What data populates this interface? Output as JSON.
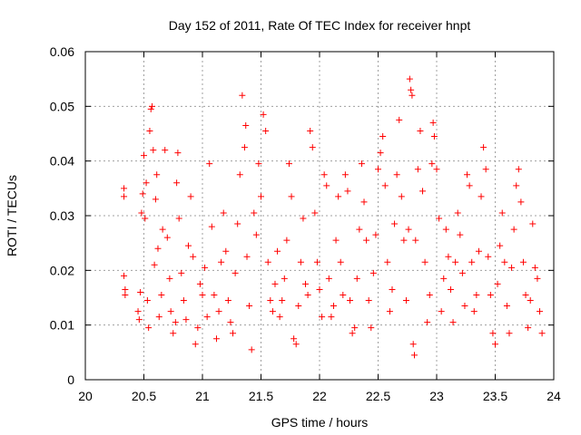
{
  "chart_data": {
    "type": "scatter",
    "title": "Day 152 of 2011, Rate Of TEC Index for receiver hnpt",
    "xlabel": "GPS time / hours",
    "ylabel": "ROTI / TECUs",
    "xlim": [
      20,
      24
    ],
    "ylim": [
      0,
      0.06
    ],
    "xticks": [
      "20",
      "20.5",
      "21",
      "21.5",
      "22",
      "22.5",
      "23",
      "23.5",
      "24"
    ],
    "yticks": [
      "0",
      "0.01",
      "0.02",
      "0.03",
      "0.04",
      "0.05",
      "0.06"
    ],
    "grid": true,
    "marker": "plus",
    "series": [
      {
        "color": "#ff0000",
        "points": [
          [
            20.33,
            0.035
          ],
          [
            20.33,
            0.0335
          ],
          [
            20.33,
            0.019
          ],
          [
            20.34,
            0.0165
          ],
          [
            20.34,
            0.0155
          ],
          [
            20.45,
            0.0125
          ],
          [
            20.46,
            0.011
          ],
          [
            20.47,
            0.016
          ],
          [
            20.48,
            0.0305
          ],
          [
            20.49,
            0.034
          ],
          [
            20.5,
            0.041
          ],
          [
            20.51,
            0.0295
          ],
          [
            20.52,
            0.036
          ],
          [
            20.53,
            0.0145
          ],
          [
            20.54,
            0.0095
          ],
          [
            20.55,
            0.0455
          ],
          [
            20.56,
            0.0495
          ],
          [
            20.57,
            0.05
          ],
          [
            20.58,
            0.042
          ],
          [
            20.59,
            0.021
          ],
          [
            20.6,
            0.033
          ],
          [
            20.61,
            0.0375
          ],
          [
            20.62,
            0.024
          ],
          [
            20.63,
            0.0115
          ],
          [
            20.65,
            0.0155
          ],
          [
            20.66,
            0.0275
          ],
          [
            20.68,
            0.042
          ],
          [
            20.7,
            0.026
          ],
          [
            20.72,
            0.0185
          ],
          [
            20.73,
            0.0125
          ],
          [
            20.75,
            0.0085
          ],
          [
            20.77,
            0.0105
          ],
          [
            20.78,
            0.036
          ],
          [
            20.79,
            0.0415
          ],
          [
            20.8,
            0.0295
          ],
          [
            20.82,
            0.0195
          ],
          [
            20.84,
            0.0145
          ],
          [
            20.86,
            0.011
          ],
          [
            20.88,
            0.0245
          ],
          [
            20.9,
            0.0335
          ],
          [
            20.92,
            0.0225
          ],
          [
            20.94,
            0.0065
          ],
          [
            20.96,
            0.0095
          ],
          [
            20.98,
            0.0175
          ],
          [
            21.0,
            0.0155
          ],
          [
            21.02,
            0.0205
          ],
          [
            21.04,
            0.0115
          ],
          [
            21.06,
            0.0395
          ],
          [
            21.08,
            0.028
          ],
          [
            21.1,
            0.0155
          ],
          [
            21.12,
            0.0075
          ],
          [
            21.14,
            0.0125
          ],
          [
            21.16,
            0.0215
          ],
          [
            21.18,
            0.0305
          ],
          [
            21.2,
            0.0235
          ],
          [
            21.22,
            0.0145
          ],
          [
            21.24,
            0.0105
          ],
          [
            21.26,
            0.0085
          ],
          [
            21.28,
            0.0195
          ],
          [
            21.3,
            0.0285
          ],
          [
            21.32,
            0.0375
          ],
          [
            21.34,
            0.052
          ],
          [
            21.36,
            0.0425
          ],
          [
            21.37,
            0.0465
          ],
          [
            21.38,
            0.0225
          ],
          [
            21.4,
            0.0135
          ],
          [
            21.42,
            0.0055
          ],
          [
            21.44,
            0.0305
          ],
          [
            21.46,
            0.0265
          ],
          [
            21.48,
            0.0395
          ],
          [
            21.5,
            0.0335
          ],
          [
            21.52,
            0.0485
          ],
          [
            21.54,
            0.0455
          ],
          [
            21.56,
            0.0215
          ],
          [
            21.58,
            0.0145
          ],
          [
            21.6,
            0.0125
          ],
          [
            21.62,
            0.0175
          ],
          [
            21.64,
            0.0235
          ],
          [
            21.66,
            0.0115
          ],
          [
            21.68,
            0.0145
          ],
          [
            21.7,
            0.0185
          ],
          [
            21.72,
            0.0255
          ],
          [
            21.74,
            0.0395
          ],
          [
            21.76,
            0.0335
          ],
          [
            21.78,
            0.0075
          ],
          [
            21.8,
            0.0065
          ],
          [
            21.82,
            0.0135
          ],
          [
            21.84,
            0.0215
          ],
          [
            21.86,
            0.0295
          ],
          [
            21.88,
            0.0175
          ],
          [
            21.9,
            0.0155
          ],
          [
            21.92,
            0.0455
          ],
          [
            21.94,
            0.0425
          ],
          [
            21.96,
            0.0305
          ],
          [
            21.98,
            0.0215
          ],
          [
            22.0,
            0.0165
          ],
          [
            22.02,
            0.0115
          ],
          [
            22.04,
            0.0375
          ],
          [
            22.06,
            0.0355
          ],
          [
            22.08,
            0.0185
          ],
          [
            22.1,
            0.0115
          ],
          [
            22.12,
            0.0135
          ],
          [
            22.14,
            0.0255
          ],
          [
            22.16,
            0.0335
          ],
          [
            22.18,
            0.0215
          ],
          [
            22.2,
            0.0155
          ],
          [
            22.22,
            0.0375
          ],
          [
            22.24,
            0.0345
          ],
          [
            22.26,
            0.0145
          ],
          [
            22.28,
            0.0085
          ],
          [
            22.3,
            0.0095
          ],
          [
            22.32,
            0.0185
          ],
          [
            22.34,
            0.0275
          ],
          [
            22.36,
            0.0395
          ],
          [
            22.38,
            0.0325
          ],
          [
            22.4,
            0.0255
          ],
          [
            22.42,
            0.0145
          ],
          [
            22.44,
            0.0095
          ],
          [
            22.46,
            0.0195
          ],
          [
            22.48,
            0.0265
          ],
          [
            22.5,
            0.0385
          ],
          [
            22.52,
            0.0415
          ],
          [
            22.54,
            0.0445
          ],
          [
            22.56,
            0.0355
          ],
          [
            22.58,
            0.0215
          ],
          [
            22.6,
            0.0125
          ],
          [
            22.62,
            0.0165
          ],
          [
            22.64,
            0.0285
          ],
          [
            22.66,
            0.0375
          ],
          [
            22.68,
            0.0475
          ],
          [
            22.7,
            0.0335
          ],
          [
            22.72,
            0.0255
          ],
          [
            22.74,
            0.0145
          ],
          [
            22.76,
            0.0275
          ],
          [
            22.77,
            0.055
          ],
          [
            22.78,
            0.053
          ],
          [
            22.79,
            0.052
          ],
          [
            22.8,
            0.0065
          ],
          [
            22.81,
            0.0045
          ],
          [
            22.82,
            0.0255
          ],
          [
            22.84,
            0.0385
          ],
          [
            22.86,
            0.0455
          ],
          [
            22.88,
            0.0345
          ],
          [
            22.9,
            0.0215
          ],
          [
            22.92,
            0.0105
          ],
          [
            22.94,
            0.0155
          ],
          [
            22.96,
            0.0395
          ],
          [
            22.97,
            0.047
          ],
          [
            22.98,
            0.0445
          ],
          [
            23.0,
            0.0385
          ],
          [
            23.02,
            0.0295
          ],
          [
            23.04,
            0.0125
          ],
          [
            23.06,
            0.0185
          ],
          [
            23.08,
            0.0275
          ],
          [
            23.1,
            0.0225
          ],
          [
            23.12,
            0.0165
          ],
          [
            23.14,
            0.0105
          ],
          [
            23.16,
            0.0215
          ],
          [
            23.18,
            0.0305
          ],
          [
            23.2,
            0.0265
          ],
          [
            23.22,
            0.0195
          ],
          [
            23.24,
            0.0135
          ],
          [
            23.26,
            0.0375
          ],
          [
            23.28,
            0.0355
          ],
          [
            23.3,
            0.0215
          ],
          [
            23.32,
            0.0125
          ],
          [
            23.34,
            0.0155
          ],
          [
            23.36,
            0.0235
          ],
          [
            23.38,
            0.0335
          ],
          [
            23.4,
            0.0425
          ],
          [
            23.42,
            0.0385
          ],
          [
            23.44,
            0.0225
          ],
          [
            23.46,
            0.0155
          ],
          [
            23.48,
            0.0085
          ],
          [
            23.5,
            0.0065
          ],
          [
            23.52,
            0.0175
          ],
          [
            23.54,
            0.0245
          ],
          [
            23.56,
            0.0305
          ],
          [
            23.58,
            0.0215
          ],
          [
            23.6,
            0.0135
          ],
          [
            23.62,
            0.0085
          ],
          [
            23.64,
            0.0205
          ],
          [
            23.66,
            0.0275
          ],
          [
            23.68,
            0.0355
          ],
          [
            23.7,
            0.0385
          ],
          [
            23.72,
            0.0325
          ],
          [
            23.74,
            0.0215
          ],
          [
            23.76,
            0.0155
          ],
          [
            23.78,
            0.0095
          ],
          [
            23.8,
            0.0145
          ],
          [
            23.82,
            0.0285
          ],
          [
            23.84,
            0.0205
          ],
          [
            23.86,
            0.0185
          ],
          [
            23.88,
            0.0125
          ],
          [
            23.9,
            0.0085
          ]
        ]
      }
    ]
  }
}
